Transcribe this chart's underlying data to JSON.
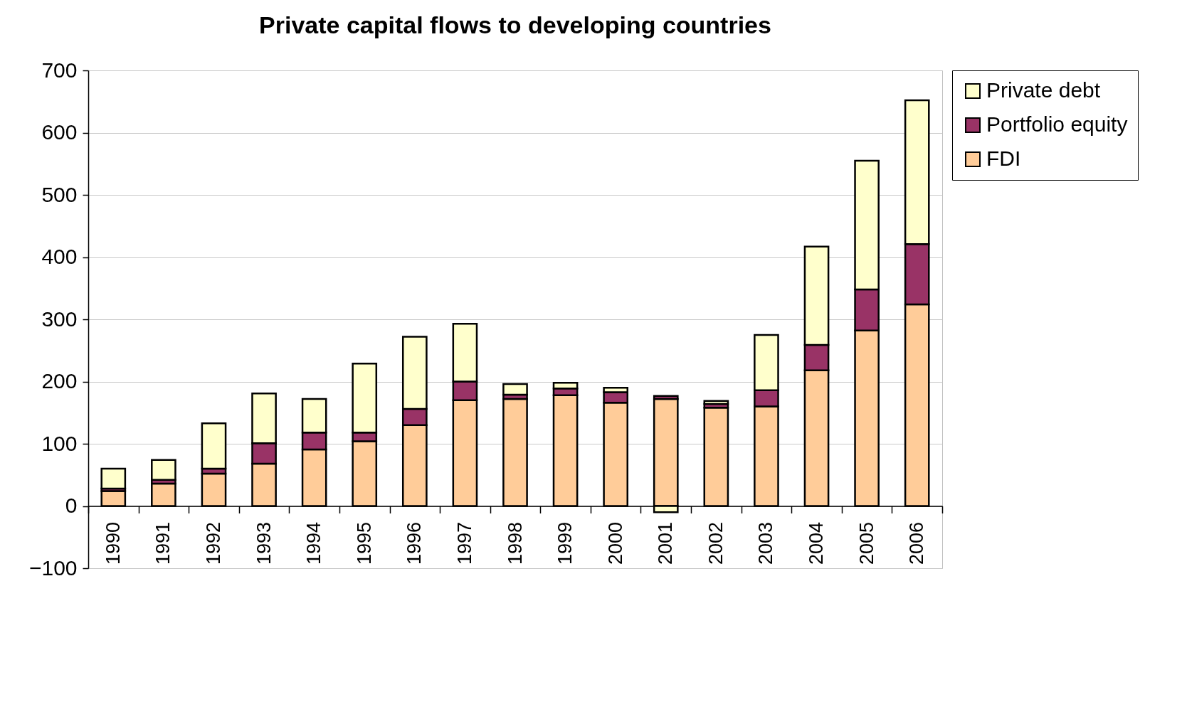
{
  "chart_data": {
    "type": "bar",
    "title": "Private capital flows to developing countries",
    "stacked": true,
    "categories": [
      "1990",
      "1991",
      "1992",
      "1993",
      "1994",
      "1995",
      "1996",
      "1997",
      "1998",
      "1999",
      "2000",
      "2001",
      "2002",
      "2003",
      "2004",
      "2005",
      "2006"
    ],
    "series": [
      {
        "name": "FDI",
        "color": "#ffcc99",
        "values": [
          24,
          36,
          52,
          68,
          91,
          104,
          130,
          170,
          172,
          178,
          166,
          172,
          158,
          160,
          218,
          282,
          324
        ]
      },
      {
        "name": "Portfolio equity",
        "color": "#993366",
        "values": [
          4,
          6,
          8,
          33,
          27,
          14,
          26,
          30,
          7,
          11,
          17,
          5,
          6,
          26,
          41,
          66,
          97
        ]
      },
      {
        "name": "Private debt",
        "color": "#ffffcc",
        "values": [
          32,
          32,
          73,
          80,
          54,
          111,
          116,
          93,
          17,
          9,
          7,
          -10,
          5,
          89,
          158,
          207,
          231
        ]
      }
    ],
    "ylim": [
      -100,
      700
    ],
    "yticks": [
      -100,
      0,
      100,
      200,
      300,
      400,
      500,
      600,
      700
    ],
    "grid": "y",
    "legend": "right"
  }
}
